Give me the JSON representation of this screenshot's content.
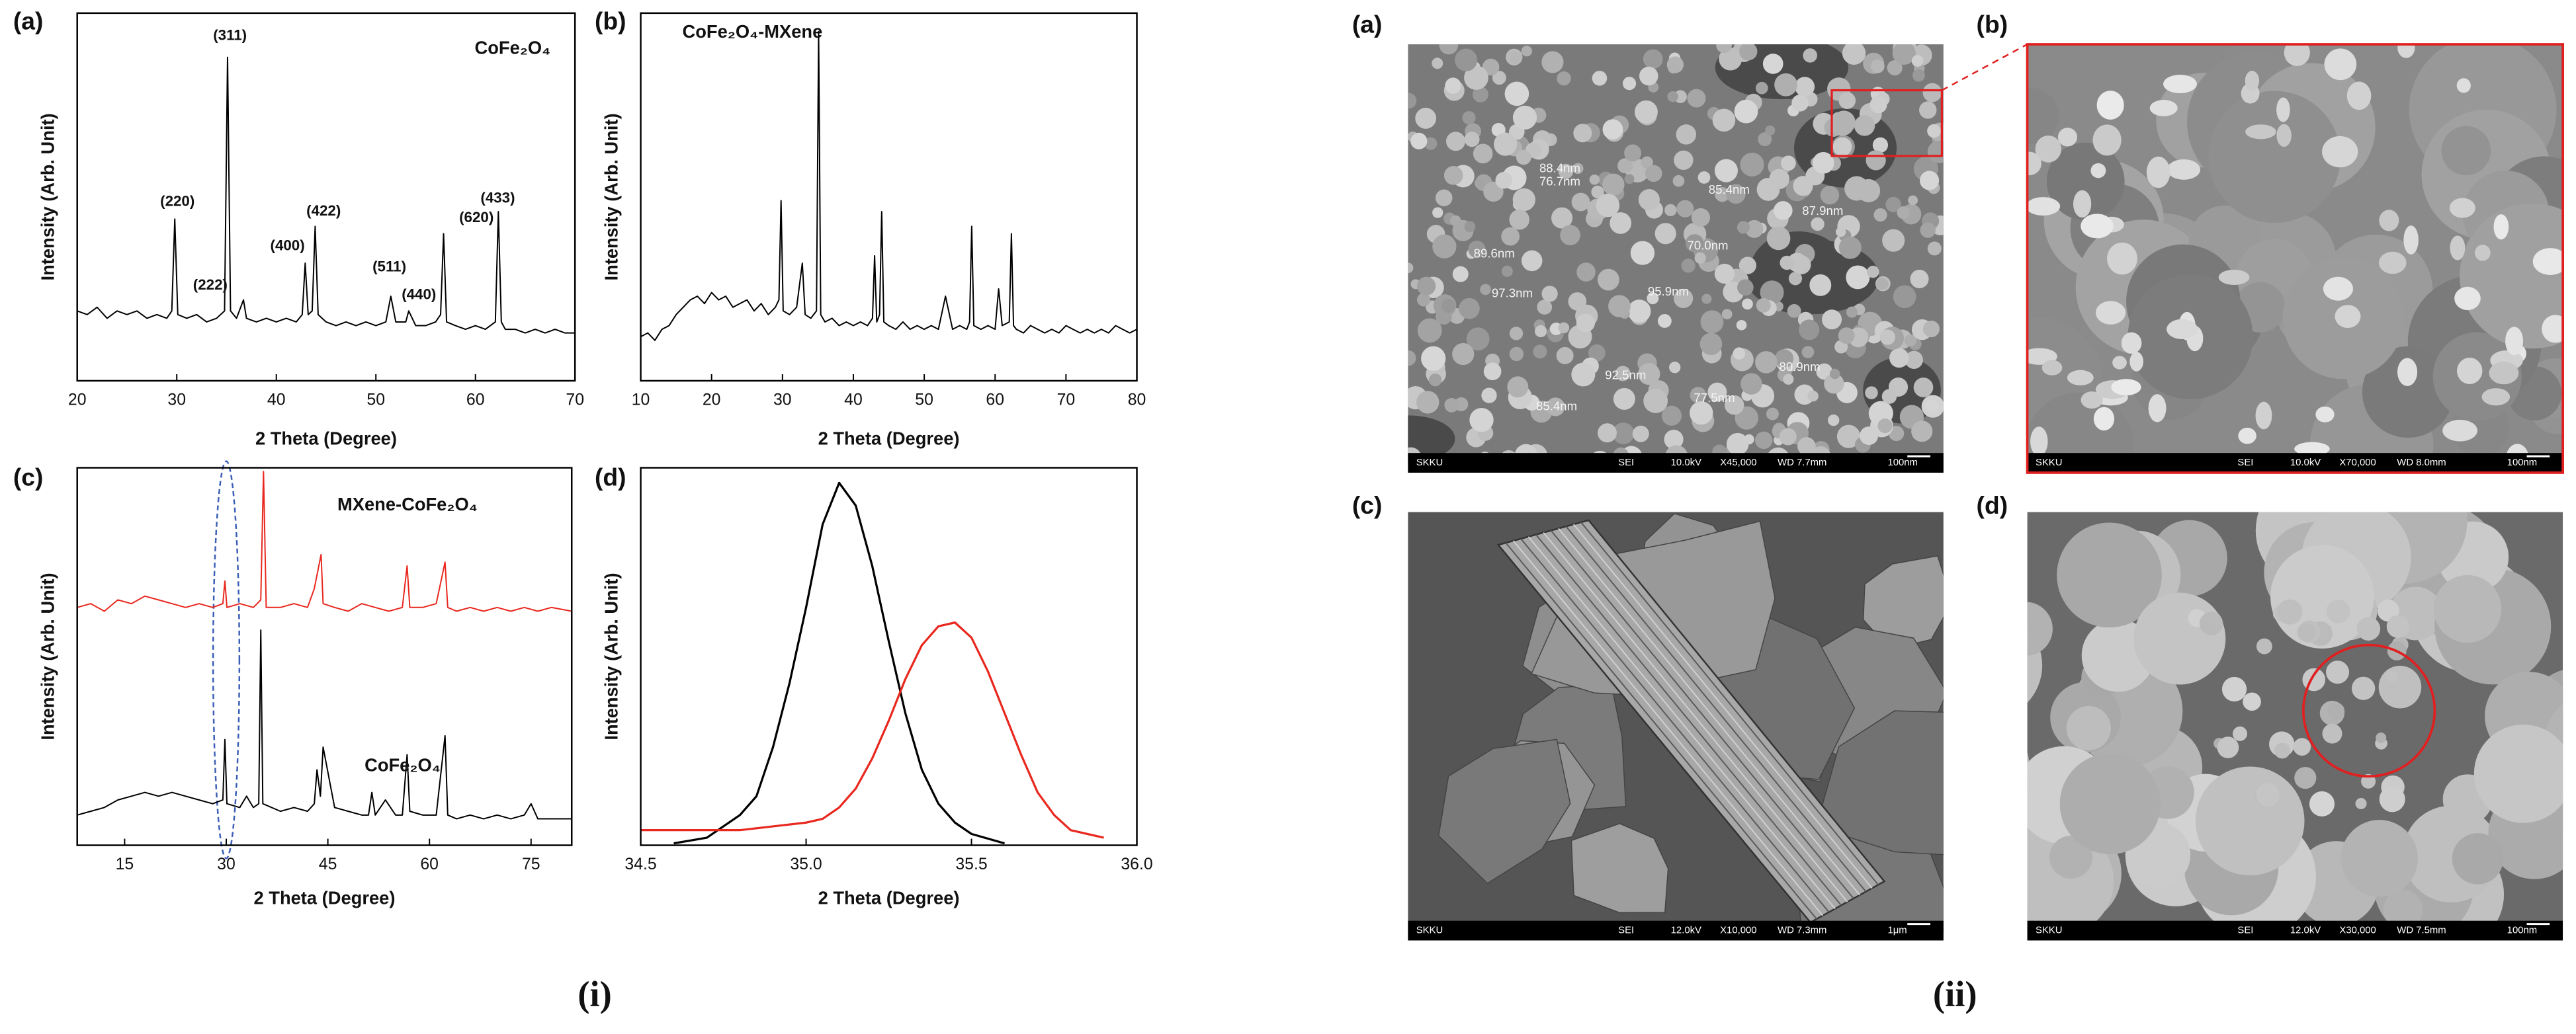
{
  "chart_data": [
    {
      "type": "line",
      "panel_label": "(a)",
      "title": "CoFe₂O₄",
      "xlabel": "2 Theta (Degree)",
      "ylabel": "Intensity (Arb. Unit)",
      "xlim": [
        20,
        70
      ],
      "xticks": [
        20,
        30,
        40,
        50,
        60,
        70
      ],
      "ylim": [
        0,
        100
      ],
      "color": "#000000",
      "annotations": [
        "(220)",
        "(311)",
        "(222)",
        "(400)",
        "(422)",
        "(511)",
        "(440)",
        "(620)",
        "(433)"
      ],
      "x": [
        20,
        21,
        22,
        23,
        24,
        25,
        26,
        27,
        28,
        29,
        29.5,
        29.8,
        30.1,
        31,
        32,
        33,
        34,
        34.8,
        35.1,
        35.4,
        36,
        36.7,
        37,
        38,
        39,
        40,
        41,
        42,
        42.6,
        42.9,
        43.2,
        43.6,
        43.9,
        44.2,
        45,
        46,
        47,
        48,
        49,
        50,
        51,
        51.5,
        52,
        53,
        53.3,
        54,
        55,
        56,
        56.5,
        56.8,
        57.1,
        58,
        59,
        60,
        61,
        62,
        62.3,
        62.6,
        63,
        64,
        65,
        66,
        67,
        68,
        69,
        70
      ],
      "values": [
        19,
        18,
        20,
        17,
        19,
        18,
        19,
        17,
        18,
        17,
        19,
        44,
        18,
        17,
        18,
        16,
        17,
        19,
        88,
        19,
        17,
        22,
        17,
        16,
        17,
        16,
        17,
        16,
        18,
        32,
        18,
        19,
        42,
        18,
        16,
        15,
        16,
        15,
        16,
        15,
        16,
        23,
        16,
        16,
        19,
        15,
        15,
        16,
        18,
        40,
        16,
        15,
        14,
        15,
        14,
        16,
        46,
        16,
        14,
        14,
        13,
        14,
        13,
        14,
        13,
        13
      ]
    },
    {
      "type": "line",
      "panel_label": "(b)",
      "title": "CoFe₂O₄-MXene",
      "xlabel": "2 Theta (Degree)",
      "ylabel": "Intensity (Arb. Unit)",
      "xlim": [
        10,
        80
      ],
      "xticks": [
        10,
        20,
        30,
        40,
        50,
        60,
        70,
        80
      ],
      "ylim": [
        0,
        100
      ],
      "color": "#000000",
      "x": [
        10,
        11,
        12,
        13,
        14,
        15,
        16,
        17,
        18,
        19,
        20,
        21,
        22,
        23,
        24,
        25,
        26,
        27,
        28,
        29,
        29.5,
        29.8,
        30.1,
        31,
        32,
        32.8,
        33.2,
        34,
        34.8,
        35.1,
        35.4,
        36,
        37,
        38,
        39,
        40,
        41,
        42,
        42.7,
        43,
        43.3,
        43.7,
        44,
        44.3,
        45,
        46,
        47,
        48,
        49,
        50,
        51,
        52,
        53,
        54,
        55,
        56,
        56.4,
        56.7,
        57,
        58,
        59,
        60,
        60.5,
        61,
        62,
        62.3,
        62.6,
        63,
        64,
        65,
        66,
        67,
        68,
        69,
        70,
        71,
        72,
        73,
        74,
        75,
        76,
        77,
        78,
        79,
        80
      ],
      "values": [
        12,
        13,
        11,
        14,
        15,
        18,
        20,
        22,
        23,
        21,
        24,
        22,
        23,
        20,
        21,
        22,
        19,
        21,
        18,
        20,
        22,
        49,
        19,
        18,
        20,
        32,
        18,
        17,
        19,
        95,
        18,
        16,
        17,
        15,
        16,
        15,
        16,
        15,
        17,
        34,
        16,
        18,
        46,
        16,
        15,
        14,
        16,
        14,
        15,
        14,
        15,
        14,
        23,
        14,
        15,
        14,
        16,
        42,
        15,
        14,
        15,
        14,
        25,
        15,
        16,
        40,
        15,
        14,
        13,
        15,
        14,
        13,
        14,
        13,
        15,
        14,
        13,
        14,
        13,
        14,
        13,
        15,
        14,
        13,
        14
      ]
    },
    {
      "type": "line",
      "panel_label": "(c)",
      "xlabel": "2 Theta (Degree)",
      "ylabel": "Intensity (Arb. Unit)",
      "xlim": [
        8,
        81
      ],
      "xticks": [
        15,
        30,
        45,
        60,
        75
      ],
      "ylim": [
        0,
        100
      ],
      "series": [
        {
          "name": "MXene-CoFe₂O₄",
          "color": "#e8281e",
          "x": [
            8,
            10,
            12,
            14,
            16,
            18,
            20,
            22,
            24,
            26,
            28,
            29.5,
            29.8,
            30.1,
            32,
            34,
            35.1,
            35.5,
            35.9,
            38,
            40,
            42,
            43,
            44,
            44.3,
            46,
            48,
            50,
            52,
            54,
            56,
            56.7,
            57.1,
            59,
            61,
            62.3,
            62.7,
            64,
            66,
            68,
            70,
            72,
            74,
            76,
            78,
            81
          ],
          "values": [
            63,
            64,
            62,
            65,
            64,
            66,
            65,
            64,
            63,
            64,
            63,
            64,
            70,
            63,
            64,
            63,
            65,
            99,
            63,
            63,
            64,
            63,
            68,
            77,
            64,
            63,
            62,
            64,
            63,
            62,
            63,
            74,
            63,
            63,
            64,
            75,
            63,
            62,
            63,
            62,
            63,
            62,
            63,
            62,
            63,
            62
          ]
        },
        {
          "name": "CoFe₂O₄",
          "color": "#000000",
          "x": [
            8,
            10,
            12,
            14,
            16,
            18,
            20,
            22,
            24,
            26,
            28,
            29.5,
            29.8,
            30.1,
            32,
            33,
            34,
            34.8,
            35.1,
            35.4,
            38,
            40,
            42,
            43,
            43.4,
            43.9,
            44.3,
            46,
            48,
            50,
            51,
            51.5,
            52,
            53.5,
            55,
            56,
            56.7,
            57.1,
            59,
            61,
            62.3,
            62.7,
            64,
            66,
            68,
            70,
            72,
            74,
            75,
            76,
            78,
            81
          ],
          "values": [
            8,
            9,
            10,
            12,
            13,
            14,
            13,
            14,
            13,
            12,
            11,
            12,
            28,
            11,
            10,
            13,
            10,
            11,
            57,
            11,
            9,
            10,
            9,
            11,
            20,
            13,
            26,
            10,
            9,
            8,
            8,
            14,
            8,
            12,
            8,
            8,
            24,
            9,
            8,
            8,
            29,
            8,
            7,
            8,
            7,
            8,
            7,
            8,
            11,
            7,
            7,
            7
          ]
        }
      ]
    },
    {
      "type": "line",
      "panel_label": "(d)",
      "xlabel": "2 Theta (Degree)",
      "ylabel": "Intensity (Arb. Unit)",
      "xlim": [
        34.5,
        36.0
      ],
      "xticks": [
        34.5,
        {
          "value": 35.0,
          "label": "35.0"
        },
        35.5,
        {
          "value": 36.0,
          "label": "36.0"
        }
      ],
      "ylim": [
        0,
        100
      ],
      "series": [
        {
          "color": "#000000",
          "x": [
            34.6,
            34.7,
            34.8,
            34.85,
            34.9,
            34.95,
            35.0,
            35.05,
            35.1,
            35.15,
            35.2,
            35.25,
            35.3,
            35.35,
            35.4,
            35.45,
            35.5,
            35.6
          ],
          "values": [
            0.5,
            2,
            8,
            13,
            26,
            43,
            63,
            85,
            96,
            90,
            74,
            54,
            35,
            20,
            11,
            6,
            3,
            0.5
          ]
        },
        {
          "color": "#e8281e",
          "x": [
            34.5,
            34.6,
            34.7,
            34.8,
            34.9,
            35.0,
            35.05,
            35.1,
            35.15,
            35.2,
            35.25,
            35.3,
            35.35,
            35.4,
            35.45,
            35.5,
            35.55,
            35.6,
            35.65,
            35.7,
            35.75,
            35.8,
            35.9
          ],
          "values": [
            4,
            4,
            4,
            4,
            5,
            6,
            7,
            10,
            15,
            23,
            33,
            44,
            53,
            58,
            59,
            55,
            46,
            35,
            24,
            14,
            8,
            4,
            2
          ]
        }
      ]
    }
  ],
  "sem_panels": [
    {
      "label": "(a)",
      "info": [
        "SKKU",
        "SEI",
        "10.0kV",
        "X45,000",
        "WD 7.7mm",
        "100nm"
      ],
      "measurements": [
        "88.4nm",
        "76.7nm",
        "85.4nm",
        "87.9nm",
        "70.0nm",
        "89.6nm",
        "97.3nm",
        "95.9nm",
        "80.9nm",
        "92.5nm",
        "77.5nm",
        "85.4nm"
      ]
    },
    {
      "label": "(b)",
      "info": [
        "SKKU",
        "SEI",
        "10.0kV",
        "X70,000",
        "WD 8.0mm",
        "100nm"
      ]
    },
    {
      "label": "(c)",
      "info": [
        "SKKU",
        "SEI",
        "12.0kV",
        "X10,000",
        "WD 7.3mm",
        "1μm"
      ]
    },
    {
      "label": "(d)",
      "info": [
        "SKKU",
        "SEI",
        "12.0kV",
        "X30,000",
        "WD 7.5mm",
        "100nm"
      ]
    }
  ],
  "figure_labels": [
    "(i)",
    "(ii)"
  ]
}
